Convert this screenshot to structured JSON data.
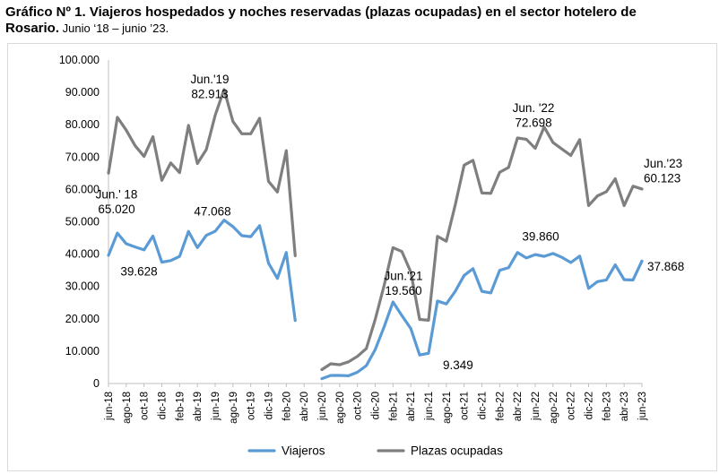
{
  "title": {
    "line1": "Gráfico Nº 1. Viajeros hospedados y noches reservadas (plazas ocupadas) en el sector hotelero de",
    "line2_bold": "Rosario.",
    "line2_rest": " Junio ‘18 – junio ’23."
  },
  "chart_data": {
    "type": "line",
    "x": [
      "jun-18",
      "jul-18",
      "ago-18",
      "sep-18",
      "oct-18",
      "nov-18",
      "dic-18",
      "ene-19",
      "feb-19",
      "mar-19",
      "abr-19",
      "may-19",
      "jun-19",
      "jul-19",
      "ago-19",
      "sep-19",
      "oct-19",
      "nov-19",
      "dic-19",
      "ene-20",
      "feb-20",
      "mar-20",
      "abr-20",
      "may-20",
      "jun-20",
      "jul-20",
      "ago-20",
      "sep-20",
      "oct-20",
      "nov-20",
      "dic-20",
      "ene-21",
      "feb-21",
      "mar-21",
      "abr-21",
      "may-21",
      "jun-21",
      "jul-21",
      "ago-21",
      "sep-21",
      "oct-21",
      "nov-21",
      "dic-21",
      "ene-22",
      "feb-22",
      "mar-22",
      "abr-22",
      "may-22",
      "jun-22",
      "jul-22",
      "ago-22",
      "sep-22",
      "oct-22",
      "nov-22",
      "dic-22",
      "ene-23",
      "feb-23",
      "mar-23",
      "abr-23",
      "may-23",
      "jun-23"
    ],
    "x_tick_labels": [
      "jun-18",
      "ago-18",
      "oct-18",
      "dic-18",
      "feb-19",
      "abr-19",
      "jun-19",
      "ago-19",
      "oct-19",
      "dic-19",
      "feb-20",
      "abr-20",
      "jun-20",
      "ago-20",
      "oct-20",
      "dic-20",
      "feb-21",
      "abr-21",
      "jun-21",
      "ago-21",
      "oct-21",
      "dic-21",
      "feb-22",
      "abr-22",
      "jun-22",
      "ago-22",
      "oct-22",
      "dic-22",
      "feb-23",
      "abr-23",
      "jun-23"
    ],
    "series": [
      {
        "name": "Viajeros",
        "color": "#5b9bd5",
        "values": [
          39628,
          46500,
          43200,
          42200,
          41300,
          45600,
          37500,
          38000,
          39300,
          47000,
          42000,
          45800,
          47068,
          50500,
          48500,
          45700,
          45400,
          48800,
          37200,
          32500,
          40500,
          19500,
          null,
          null,
          1500,
          2500,
          2500,
          2400,
          3500,
          5500,
          10500,
          17500,
          25200,
          21000,
          17000,
          8800,
          9349,
          25500,
          24600,
          28500,
          33400,
          35500,
          28500,
          28000,
          35000,
          35800,
          40500,
          38800,
          39860,
          39300,
          40200,
          39000,
          37400,
          39400,
          29400,
          31500,
          32000,
          36700,
          32100,
          32000,
          37868
        ]
      },
      {
        "name": "Plazas ocupadas",
        "color": "#7f7f7f",
        "values": [
          65020,
          82300,
          78300,
          73500,
          70200,
          76300,
          62800,
          68200,
          65200,
          79800,
          68000,
          72300,
          82913,
          90900,
          81000,
          77200,
          77200,
          82000,
          62500,
          59200,
          72000,
          39500,
          null,
          null,
          4300,
          6100,
          5800,
          6700,
          8400,
          10800,
          19800,
          30300,
          42000,
          40800,
          34500,
          19800,
          19560,
          45500,
          44000,
          55200,
          67500,
          69000,
          58900,
          58800,
          65300,
          66800,
          75900,
          75500,
          72698,
          79300,
          74500,
          72500,
          70500,
          75400,
          55000,
          58000,
          59300,
          63300,
          55000,
          61000,
          60123
        ]
      }
    ],
    "ylim": [
      0,
      100000
    ],
    "y_tick_labels": [
      "0",
      "10.000",
      "20.000",
      "30.000",
      "40.000",
      "50.000",
      "60.000",
      "70.000",
      "80.000",
      "90.000",
      "100.000"
    ],
    "legend_position": "bottom",
    "gridlines": false,
    "annotations": [
      {
        "series": "Plazas ocupadas",
        "month": "jun-18",
        "lines": [
          "Jun.' 18",
          "65.020"
        ]
      },
      {
        "series": "Viajeros",
        "month": "jun-18",
        "lines": [
          "39.628"
        ]
      },
      {
        "series": "Plazas ocupadas",
        "month": "jun-19",
        "lines": [
          "Jun.'19",
          "82.913"
        ]
      },
      {
        "series": "Viajeros",
        "month": "jun-19",
        "lines": [
          "47.068"
        ]
      },
      {
        "series": "Plazas ocupadas",
        "month": "jun-21",
        "lines": [
          "Jun.'21",
          "19.560"
        ]
      },
      {
        "series": "Viajeros",
        "month": "jun-21",
        "lines": [
          "9.349"
        ]
      },
      {
        "series": "Plazas ocupadas",
        "month": "jun-22",
        "lines": [
          "Jun. '22",
          "72.698"
        ]
      },
      {
        "series": "Viajeros",
        "month": "jun-22",
        "lines": [
          "39.860"
        ]
      },
      {
        "series": "Plazas ocupadas",
        "month": "jun-23",
        "lines": [
          "Jun.'23",
          "60.123"
        ]
      },
      {
        "series": "Viajeros",
        "month": "jun-23",
        "lines": [
          "37.868"
        ]
      }
    ]
  }
}
